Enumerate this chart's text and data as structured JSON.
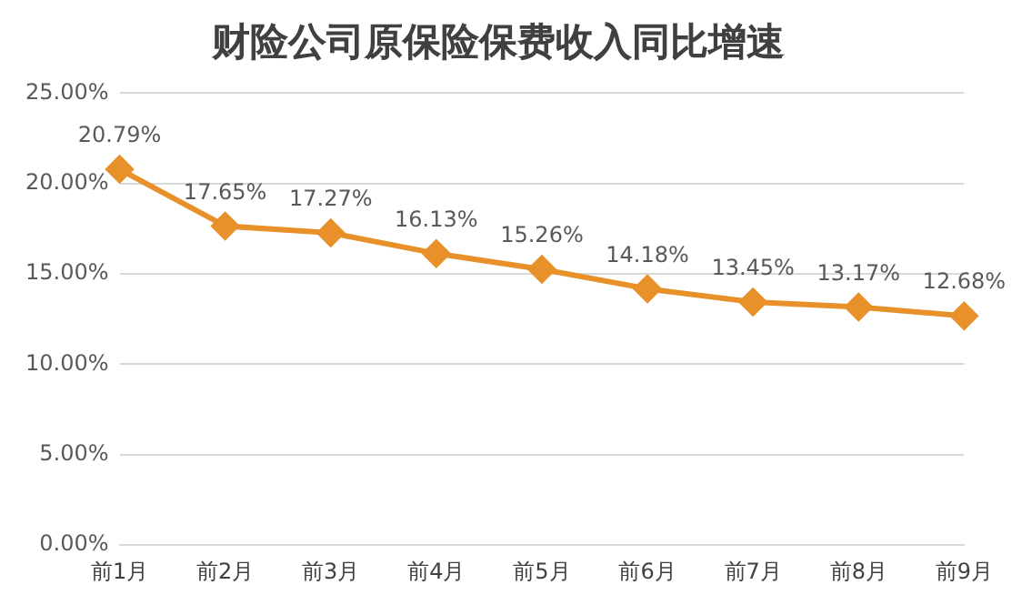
{
  "chart_data": {
    "type": "line",
    "title": "财险公司原保险保费收入同比增速",
    "categories": [
      "前1月",
      "前2月",
      "前3月",
      "前4月",
      "前5月",
      "前6月",
      "前7月",
      "前8月",
      "前9月"
    ],
    "series": [
      {
        "color": "#e8912a",
        "values": [
          20.79,
          17.65,
          17.27,
          16.13,
          15.26,
          14.18,
          13.45,
          13.17,
          12.68
        ],
        "value_labels": [
          "20.79%",
          "17.65%",
          "17.27%",
          "16.13%",
          "15.26%",
          "14.18%",
          "13.45%",
          "13.17%",
          "12.68%"
        ]
      }
    ],
    "ylim": [
      0,
      25
    ],
    "yticks": [
      {
        "value": 0,
        "label": "0.00%"
      },
      {
        "value": 5,
        "label": "5.00%"
      },
      {
        "value": 10,
        "label": "10.00%"
      },
      {
        "value": 15,
        "label": "15.00%"
      },
      {
        "value": 20,
        "label": "20.00%"
      },
      {
        "value": 25,
        "label": "25.00%"
      }
    ],
    "grid": "y",
    "legend": false,
    "marker": "diamond",
    "line_style": "solid"
  }
}
